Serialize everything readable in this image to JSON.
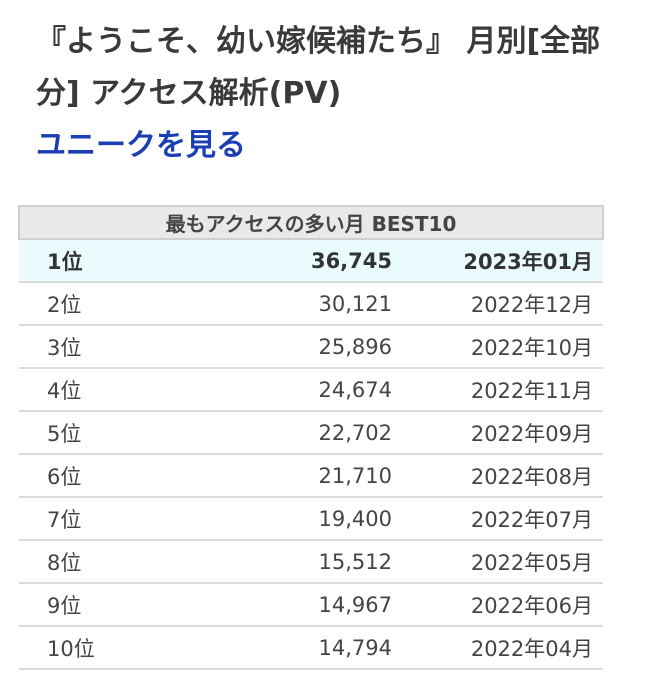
{
  "page": {
    "title": "『ようこそ、幼い嫁候補たち』 月別[全部分] アクセス解析(PV)",
    "unique_link": "ユニークを見る"
  },
  "table": {
    "header": "最もアクセスの多い月 BEST10",
    "rows": [
      {
        "rank": "1位",
        "pv": "36,745",
        "month": "2023年01月"
      },
      {
        "rank": "2位",
        "pv": "30,121",
        "month": "2022年12月"
      },
      {
        "rank": "3位",
        "pv": "25,896",
        "month": "2022年10月"
      },
      {
        "rank": "4位",
        "pv": "24,674",
        "month": "2022年11月"
      },
      {
        "rank": "5位",
        "pv": "22,702",
        "month": "2022年09月"
      },
      {
        "rank": "6位",
        "pv": "21,710",
        "month": "2022年08月"
      },
      {
        "rank": "7位",
        "pv": "19,400",
        "month": "2022年07月"
      },
      {
        "rank": "8位",
        "pv": "15,512",
        "month": "2022年05月"
      },
      {
        "rank": "9位",
        "pv": "14,967",
        "month": "2022年06月"
      },
      {
        "rank": "10位",
        "pv": "14,794",
        "month": "2022年04月"
      }
    ]
  },
  "colors": {
    "link": "#1a3fb5",
    "header_bg": "#e9e9e9",
    "top_row_bg": "#e9fbfd"
  }
}
